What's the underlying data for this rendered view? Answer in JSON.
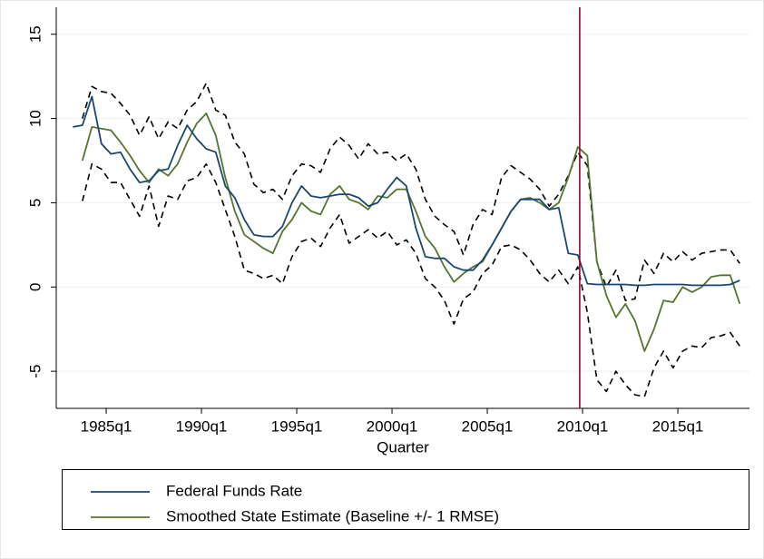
{
  "chart_data": {
    "type": "line",
    "xlabel": "Quarter",
    "xlim": [
      1982.38,
      2018.76
    ],
    "ylim": [
      -7.2,
      16.6
    ],
    "xticks": [
      {
        "value": 1985,
        "label": "1985q1"
      },
      {
        "value": 1990,
        "label": "1990q1"
      },
      {
        "value": 1995,
        "label": "1995q1"
      },
      {
        "value": 2000,
        "label": "2000q1"
      },
      {
        "value": 2005,
        "label": "2005q1"
      },
      {
        "value": 2010,
        "label": "2010q1"
      },
      {
        "value": 2015,
        "label": "2015q1"
      }
    ],
    "yticks": [
      -5,
      0,
      5,
      10,
      15
    ],
    "grid": true,
    "legend": "bottom",
    "vline": {
      "x": 2009.85,
      "color": "#990033"
    },
    "x": [
      1983.25,
      1983.75,
      1984.25,
      1984.75,
      1985.25,
      1985.75,
      1986.25,
      1986.75,
      1987.25,
      1987.75,
      1988.25,
      1988.75,
      1989.25,
      1989.75,
      1990.25,
      1990.75,
      1991.25,
      1991.75,
      1992.25,
      1992.75,
      1993.25,
      1993.75,
      1994.25,
      1994.75,
      1995.25,
      1995.75,
      1996.25,
      1996.75,
      1997.25,
      1997.75,
      1998.25,
      1998.75,
      1999.25,
      1999.75,
      2000.25,
      2000.75,
      2001.25,
      2001.75,
      2002.25,
      2002.75,
      2003.25,
      2003.75,
      2004.25,
      2004.75,
      2005.25,
      2005.75,
      2006.25,
      2006.75,
      2007.25,
      2007.75,
      2008.25,
      2008.75,
      2009.25,
      2009.75,
      2010.25,
      2010.75,
      2011.25,
      2011.75,
      2012.25,
      2012.75,
      2013.25,
      2013.75,
      2014.25,
      2014.75,
      2015.25,
      2015.75,
      2016.25,
      2016.75,
      2017.25,
      2017.75,
      2018.25
    ],
    "series": [
      {
        "name": "Federal Funds Rate",
        "color": "#1a476f",
        "values": [
          9.5,
          9.6,
          11.3,
          8.5,
          7.9,
          8.0,
          7.0,
          6.2,
          6.3,
          6.9,
          7.0,
          8.4,
          9.6,
          8.8,
          8.2,
          8.0,
          6.0,
          5.3,
          4.0,
          3.1,
          3.0,
          3.0,
          3.6,
          5.0,
          6.0,
          5.4,
          5.3,
          5.4,
          5.5,
          5.5,
          5.3,
          4.8,
          5.0,
          5.8,
          6.5,
          6.0,
          3.5,
          1.8,
          1.7,
          1.7,
          1.2,
          1.0,
          1.0,
          1.6,
          2.5,
          3.5,
          4.5,
          5.2,
          5.2,
          5.2,
          4.6,
          4.7,
          2.0,
          1.9,
          0.2,
          0.15,
          0.15,
          0.15,
          0.15,
          0.1,
          0.1,
          0.15,
          0.15,
          0.15,
          0.15,
          0.1,
          0.1,
          0.1,
          0.1,
          0.15,
          0.4
        ]
      },
      {
        "name": "Smoothed State Estimate (Baseline +/- 1 RMSE)",
        "color": "#55752f",
        "values": [
          null,
          7.5,
          9.5,
          9.4,
          9.3,
          8.6,
          7.8,
          6.9,
          6.2,
          7.0,
          6.6,
          7.3,
          8.6,
          9.7,
          10.3,
          9.0,
          6.5,
          4.5,
          3.1,
          2.7,
          2.3,
          2.0,
          3.3,
          4.0,
          5.0,
          4.5,
          4.3,
          5.5,
          6.0,
          5.2,
          5.0,
          4.6,
          5.4,
          5.3,
          5.8,
          5.8,
          4.5,
          3.0,
          2.3,
          1.2,
          0.3,
          0.8,
          1.2,
          1.5,
          2.5,
          3.5,
          4.5,
          5.2,
          5.3,
          5.0,
          4.6,
          5.0,
          6.5,
          8.3,
          7.8,
          1.5,
          -0.5,
          -1.8,
          -1.0,
          -2.0,
          -3.8,
          -2.5,
          -0.8,
          -0.9,
          0.0,
          -0.3,
          0.0,
          0.6,
          0.7,
          0.7,
          -1.0
        ]
      },
      {
        "color": "#000000",
        "dash": true,
        "values": [
          null,
          10.0,
          11.9,
          11.6,
          11.5,
          10.9,
          10.2,
          9.0,
          10.1,
          8.8,
          9.8,
          9.4,
          10.5,
          11.0,
          12.1,
          10.5,
          10.2,
          8.6,
          7.9,
          6.1,
          5.6,
          5.8,
          5.2,
          6.6,
          7.3,
          7.2,
          6.8,
          8.2,
          8.9,
          8.4,
          7.6,
          8.5,
          7.9,
          8.0,
          7.5,
          7.9,
          7.0,
          5.2,
          4.2,
          3.7,
          3.3,
          1.9,
          3.7,
          4.6,
          4.3,
          6.5,
          7.2,
          6.8,
          6.4,
          5.8,
          4.8,
          5.5,
          6.6,
          8.0,
          7.2,
          1.5,
          0.0,
          1.0,
          -0.8,
          -0.7,
          1.6,
          0.8,
          2.0,
          1.5,
          2.1,
          1.6,
          2.0,
          2.1,
          2.2,
          2.2,
          1.4
        ]
      },
      {
        "color": "#000000",
        "dash": true,
        "values": [
          null,
          5.1,
          7.3,
          7.0,
          6.2,
          6.2,
          5.2,
          4.2,
          6.0,
          3.6,
          5.4,
          5.2,
          6.3,
          6.5,
          7.3,
          6.2,
          4.6,
          3.0,
          1.0,
          0.8,
          0.5,
          0.7,
          0.2,
          1.8,
          2.7,
          2.9,
          2.4,
          3.5,
          4.3,
          2.6,
          3.0,
          3.4,
          2.9,
          3.3,
          2.5,
          2.8,
          2.0,
          0.5,
          0.0,
          -0.8,
          -2.2,
          -0.7,
          -0.3,
          0.8,
          1.3,
          2.4,
          2.5,
          2.2,
          1.6,
          0.8,
          0.3,
          1.0,
          0.2,
          1.2,
          -1.5,
          -5.5,
          -6.2,
          -5.0,
          -5.8,
          -6.4,
          -6.5,
          -4.8,
          -3.8,
          -4.8,
          -3.8,
          -3.5,
          -3.6,
          -3.0,
          -2.9,
          -2.7,
          -3.5
        ]
      }
    ]
  }
}
